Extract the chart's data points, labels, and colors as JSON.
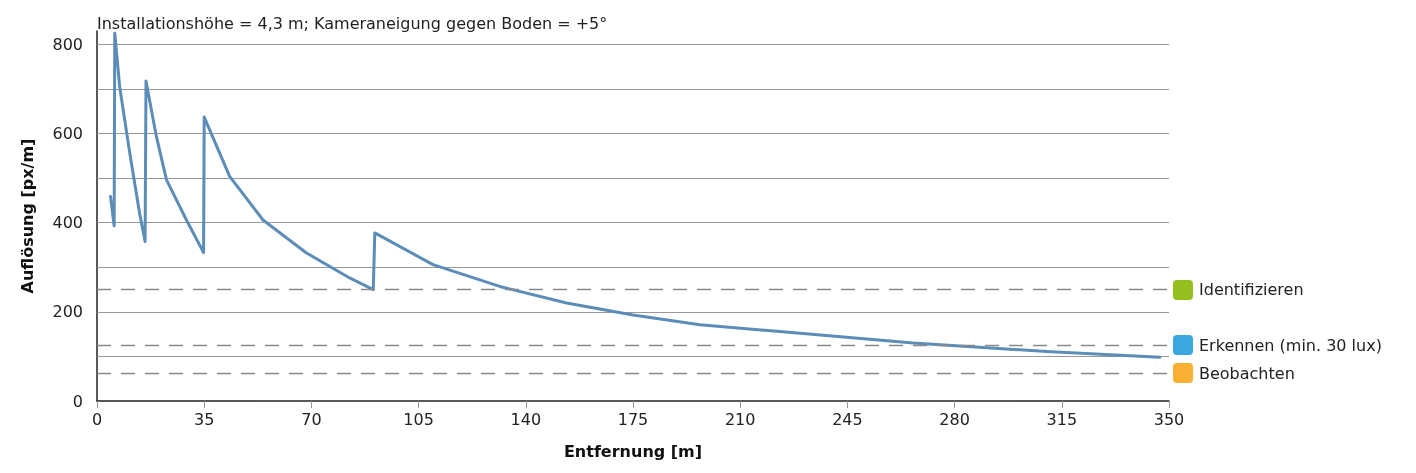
{
  "chart_data": {
    "type": "line",
    "title": "Installationshöhe = 4,3 m; Kameraneigung gegen Boden = +5°",
    "xlabel": "Entfernung [m]",
    "ylabel": "Auflösung [px/m]",
    "series": [
      {
        "color": "#5b8db8",
        "x": [
          4.4,
          5.6,
          5.8,
          7.4,
          10.7,
          13.9,
          15.7,
          16.0,
          19.4,
          22.7,
          29.2,
          34.8,
          35.0,
          43.3,
          54.2,
          68.4,
          82.5,
          90.2,
          90.7,
          109.7,
          131.5,
          153.3,
          175,
          196.8,
          222.9,
          266.5,
          310,
          347
        ],
        "values": [
          459,
          393,
          825,
          705,
          556,
          421,
          358,
          718,
          593,
          496,
          406,
          333,
          637,
          504,
          406,
          332,
          276,
          250,
          377,
          306,
          257,
          220,
          193,
          171,
          156,
          130,
          111,
          98
        ]
      }
    ],
    "xlim": [
      0,
      350
    ],
    "xticks": [
      0,
      35,
      70,
      105,
      140,
      175,
      210,
      245,
      280,
      315,
      350
    ],
    "ylim": [
      0,
      830
    ],
    "yticks": [
      0,
      {
        "value": 100,
        "label": null
      },
      200,
      {
        "value": 300,
        "label": null
      },
      400,
      {
        "value": 500,
        "label": null
      },
      600,
      {
        "value": 700,
        "label": null
      },
      800
    ],
    "ref_lines": [
      {
        "axis": "y",
        "value": 250,
        "label": "Identifizieren",
        "color": "#8a8a8a",
        "line_style": "dashed"
      },
      {
        "axis": "y",
        "value": 125,
        "label": "Erkennen (min. 30 lux)",
        "color": "#8a8a8a",
        "line_style": "dashed"
      },
      {
        "axis": "y",
        "value": 62.5,
        "label": "Beobachten",
        "color": "#8a8a8a",
        "line_style": "dashed"
      }
    ],
    "grid": "y",
    "marker": "none",
    "line_style": "solid"
  }
}
